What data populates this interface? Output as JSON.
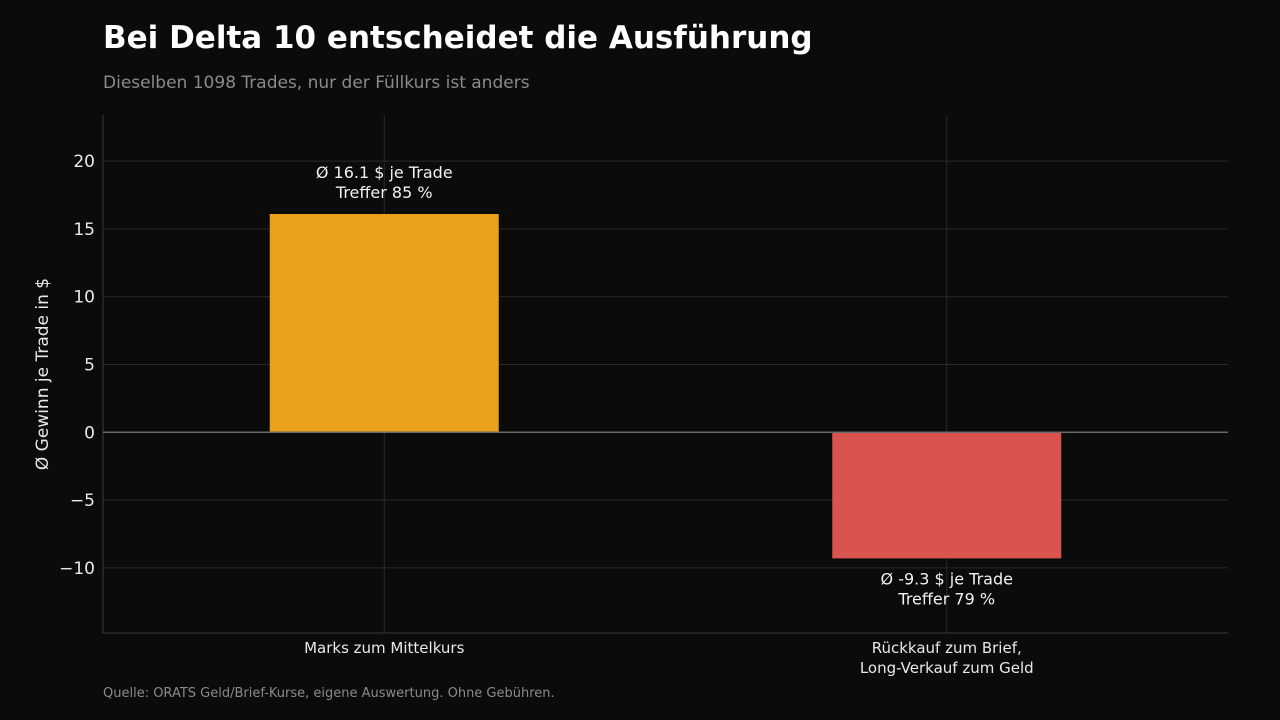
{
  "chart_data": {
    "type": "bar",
    "title": "Bei Delta 10 entscheidet die Ausführung",
    "subtitle": "Dieselben 1098 Trades, nur der Füllkurs ist anders",
    "ylabel": "Ø Gewinn je Trade in $",
    "xlabel": "",
    "ylim": [
      -14.8,
      23.4
    ],
    "yticks": [
      -10,
      -5,
      0,
      5,
      10,
      15,
      20
    ],
    "ytick_labels": [
      "−10",
      "−5",
      "0",
      "5",
      "10",
      "15",
      "20"
    ],
    "grid": true,
    "categories": [
      [
        "Marks zum Mittelkurs"
      ],
      [
        "Rückkauf zum Brief,",
        "Long-Verkauf zum Geld"
      ]
    ],
    "values": [
      16.1,
      -9.3
    ],
    "colors": [
      "#e9a01b",
      "#d9534f"
    ],
    "data_labels": [
      [
        "Ø 16.1 $ je Trade",
        "Treffer 85 %"
      ],
      [
        "Ø -9.3 $ je Trade",
        "Treffer 79 %"
      ]
    ]
  },
  "footer": {
    "source": "Quelle: ORATS Geld/Brief-Kurse, eigene Auswertung. Ohne Gebühren."
  },
  "theme": {
    "background": "#0b0b0b",
    "grid_color": "#2a2a2a",
    "zero_line_color": "#6a6a6a"
  }
}
